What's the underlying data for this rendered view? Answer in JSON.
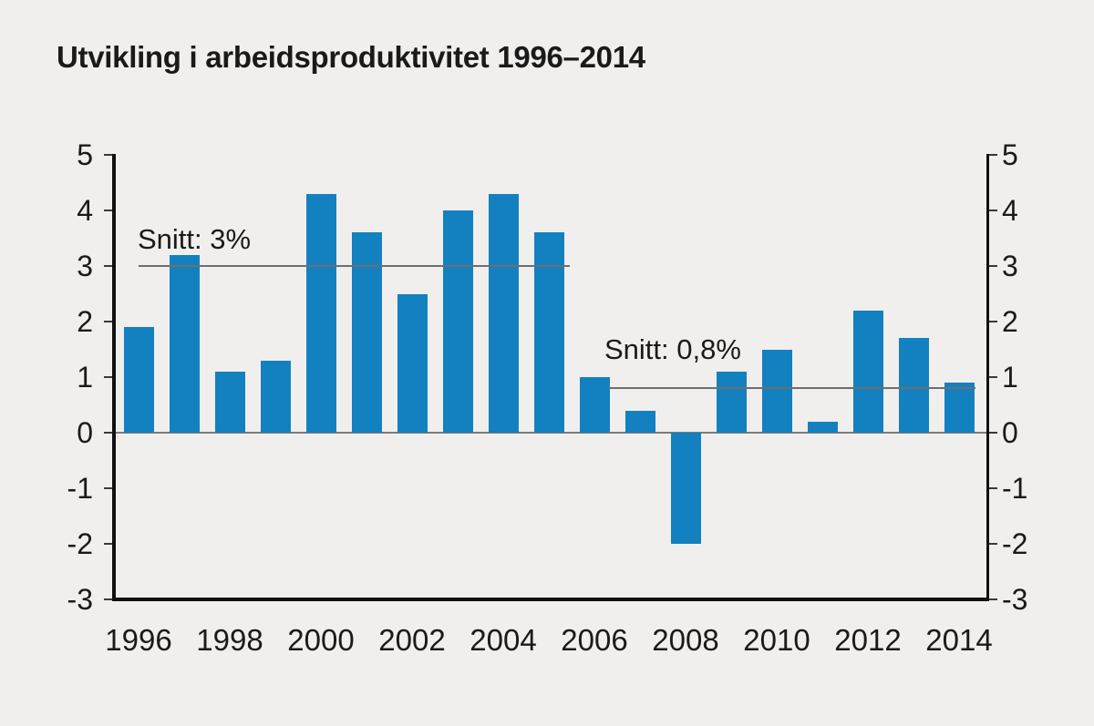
{
  "chart_data": {
    "type": "bar",
    "title": "Utvikling i arbeidsproduktivitet 1996–2014",
    "categories": [
      "1996",
      "1997",
      "1998",
      "1999",
      "2000",
      "2001",
      "2002",
      "2003",
      "2004",
      "2005",
      "2006",
      "2007",
      "2008",
      "2009",
      "2010",
      "2011",
      "2012",
      "2013",
      "2014"
    ],
    "values": [
      1.9,
      3.2,
      1.1,
      1.3,
      4.3,
      3.6,
      2.5,
      4.0,
      4.3,
      3.6,
      1.0,
      0.4,
      -2.0,
      1.1,
      1.5,
      0.2,
      2.2,
      1.7,
      0.9
    ],
    "unit": "%",
    "bar_color": "#1381bf",
    "background_color": "#f0efed",
    "ylim": [
      -3,
      5
    ],
    "yticks": [
      5,
      4,
      3,
      2,
      1,
      0,
      -1,
      -2,
      -3
    ],
    "xtick_labels": [
      "1996",
      "1998",
      "2000",
      "2002",
      "2004",
      "2006",
      "2008",
      "2010",
      "2012",
      "2014"
    ],
    "dual_y_axis": true,
    "grid": false,
    "zero_line": true,
    "legend": null,
    "annotations": [
      {
        "label": "Snitt: 3%",
        "value": 3.0,
        "from_year": 1996.0,
        "to_year": 2005.45,
        "label_dx": -1,
        "label_offset_y": -47
      },
      {
        "label": "Snitt: 0,8%",
        "value": 0.8,
        "from_year": 2006.3,
        "to_year": 2014.35,
        "label_dx": -4,
        "label_offset_y": -60
      }
    ]
  }
}
